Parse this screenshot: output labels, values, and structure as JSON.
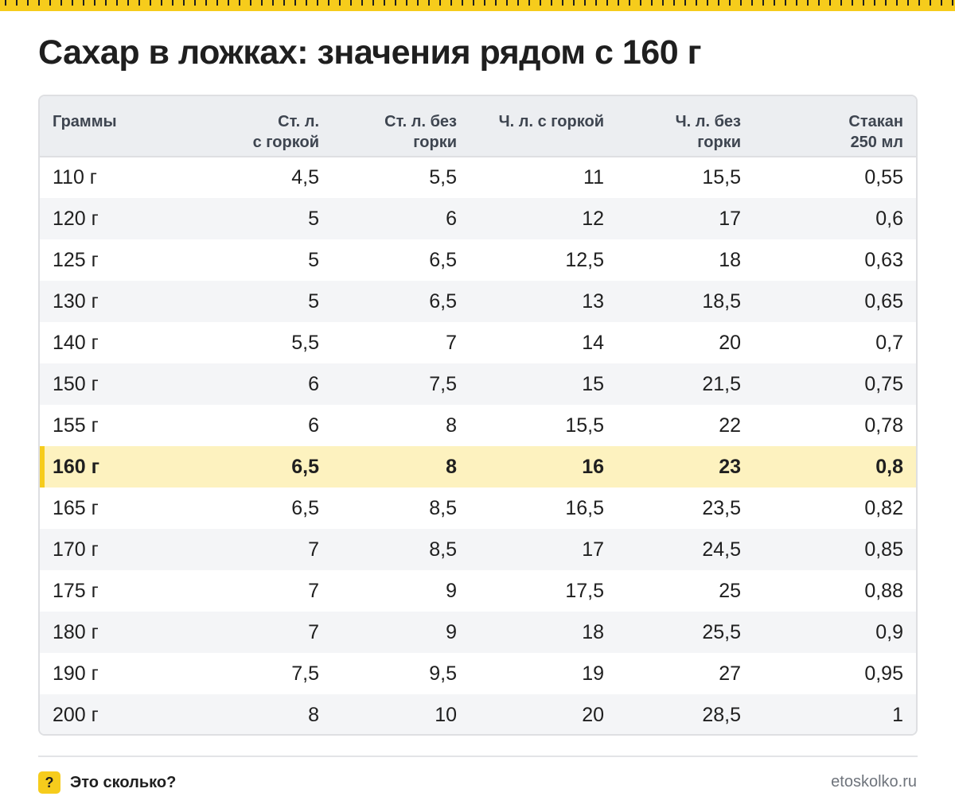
{
  "title": "Сахар в ложках: значения рядом с 160 г",
  "table": {
    "headers": [
      [
        "Граммы"
      ],
      [
        "Ст. л.",
        "с горкой"
      ],
      [
        "Ст. л. без",
        "горки"
      ],
      [
        "Ч. л. с горкой"
      ],
      [
        "Ч. л. без",
        "горки"
      ],
      [
        "Стакан",
        "250 мл"
      ]
    ],
    "rows": [
      [
        "110 г",
        "4,5",
        "5,5",
        "11",
        "15,5",
        "0,55"
      ],
      [
        "120 г",
        "5",
        "6",
        "12",
        "17",
        "0,6"
      ],
      [
        "125 г",
        "5",
        "6,5",
        "12,5",
        "18",
        "0,63"
      ],
      [
        "130 г",
        "5",
        "6,5",
        "13",
        "18,5",
        "0,65"
      ],
      [
        "140 г",
        "5,5",
        "7",
        "14",
        "20",
        "0,7"
      ],
      [
        "150 г",
        "6",
        "7,5",
        "15",
        "21,5",
        "0,75"
      ],
      [
        "155 г",
        "6",
        "8",
        "15,5",
        "22",
        "0,78"
      ],
      [
        "160 г",
        "6,5",
        "8",
        "16",
        "23",
        "0,8"
      ],
      [
        "165 г",
        "6,5",
        "8,5",
        "16,5",
        "23,5",
        "0,82"
      ],
      [
        "170 г",
        "7",
        "8,5",
        "17",
        "24,5",
        "0,85"
      ],
      [
        "175 г",
        "7",
        "9",
        "17,5",
        "25",
        "0,88"
      ],
      [
        "180 г",
        "7",
        "9",
        "18",
        "25,5",
        "0,9"
      ],
      [
        "190 г",
        "7,5",
        "9,5",
        "19",
        "27",
        "0,95"
      ],
      [
        "200 г",
        "8",
        "10",
        "20",
        "28,5",
        "1"
      ]
    ],
    "highlight_row": 7
  },
  "footer": {
    "badge": "?",
    "brand": "Это сколько?",
    "site": "etoskolko.ru"
  },
  "colors": {
    "accent": "#f6cc1c",
    "highlight_bg": "#fdf2bf",
    "header_bg": "#eceef1",
    "stripe_bg": "#f4f5f7"
  }
}
